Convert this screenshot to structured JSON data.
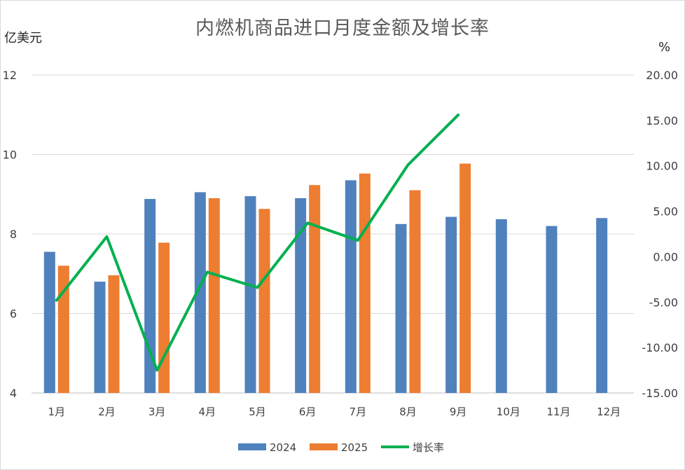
{
  "chart_data": {
    "type": "bar",
    "title": "内燃机商品进口月度金额及增长率",
    "ylabel_left": "亿美元",
    "ylabel_right": "%",
    "categories": [
      "1月",
      "2月",
      "3月",
      "4月",
      "5月",
      "6月",
      "7月",
      "8月",
      "9月",
      "10月",
      "11月",
      "12月"
    ],
    "ylim_left": [
      4,
      12
    ],
    "yticks_left": [
      "4",
      "6",
      "8",
      "10",
      "12"
    ],
    "ylim_right": [
      -15,
      20
    ],
    "yticks_right": [
      "-15.00",
      "-10.00",
      "-5.00",
      "0.00",
      "5.00",
      "10.00",
      "15.00",
      "20.00"
    ],
    "series": [
      {
        "name": "2024",
        "type": "bar",
        "color": "#4f81bd",
        "values": [
          7.55,
          6.8,
          8.88,
          9.05,
          8.95,
          8.9,
          9.35,
          8.25,
          8.43,
          8.37,
          8.2,
          8.4
        ]
      },
      {
        "name": "2025",
        "type": "bar",
        "color": "#ed7d31",
        "values": [
          7.2,
          6.96,
          7.78,
          8.9,
          8.63,
          9.23,
          9.52,
          9.1,
          9.77,
          null,
          null,
          null
        ]
      },
      {
        "name": "增长率",
        "type": "line",
        "axis": "right",
        "color": "#00b050",
        "values": [
          -4.8,
          2.2,
          -12.5,
          -1.7,
          -3.4,
          3.7,
          1.8,
          10.1,
          15.6,
          null,
          null,
          null
        ]
      }
    ],
    "grid": true,
    "legend": "bottom"
  }
}
